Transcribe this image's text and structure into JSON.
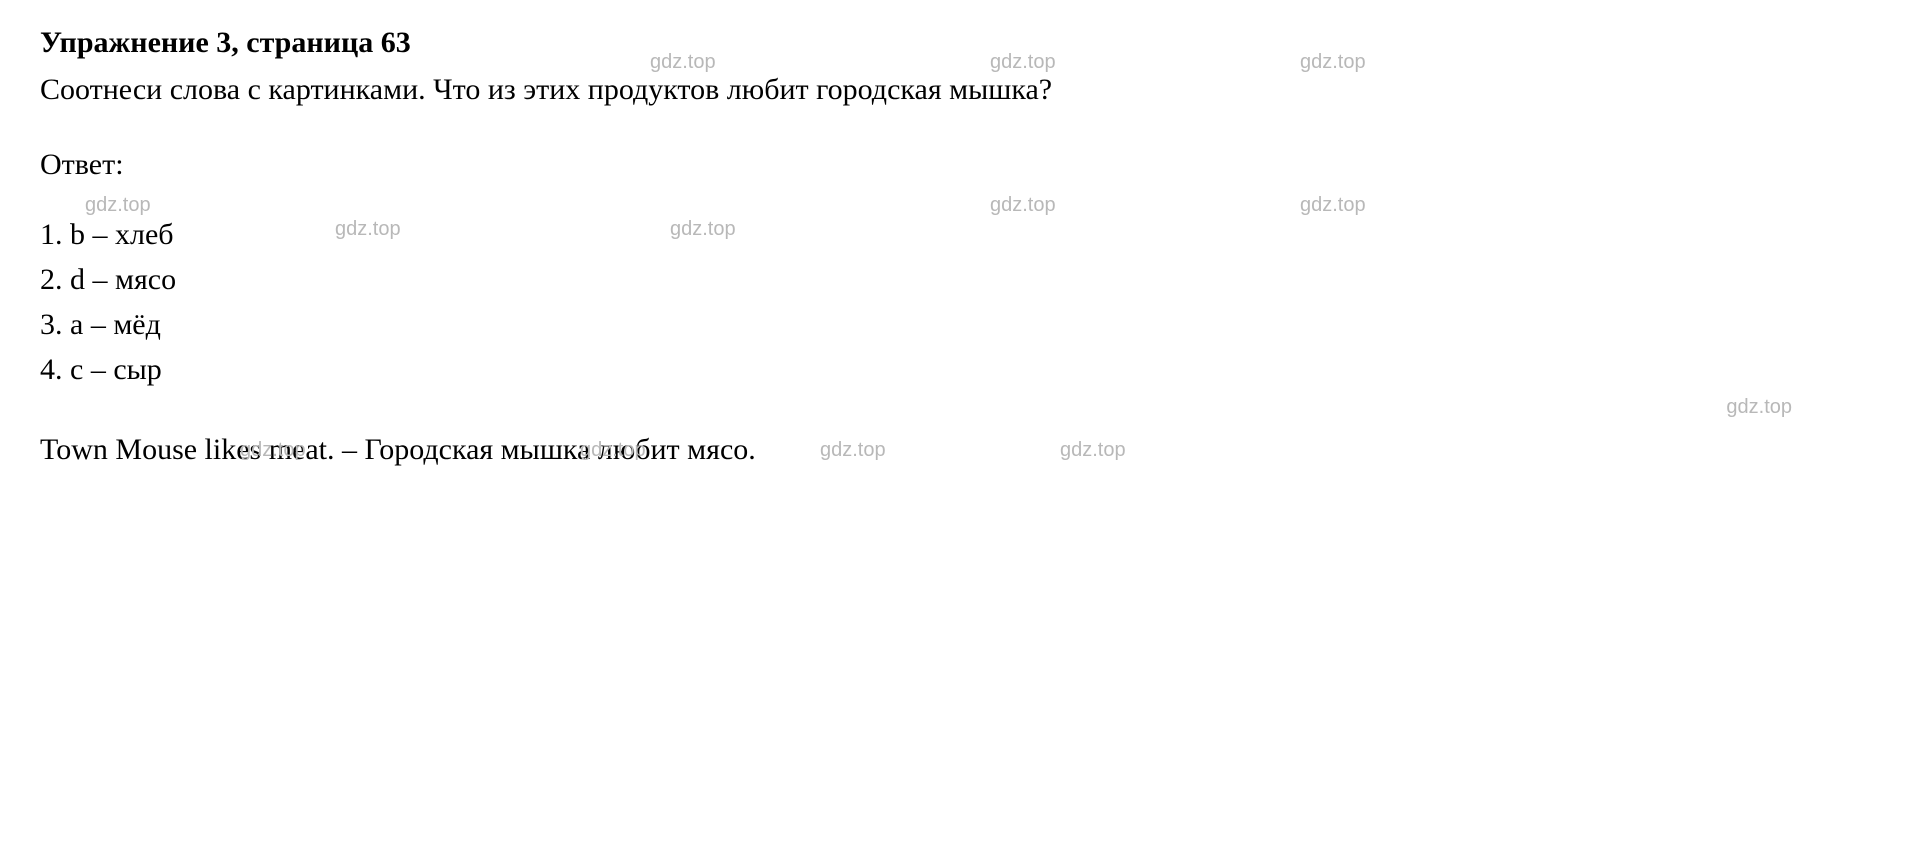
{
  "heading": "Упражнение 3, страница 63",
  "instruction": "Соотнеси слова с картинками. Что из этих продуктов любит городская мышка?",
  "answer_label": "Ответ:",
  "answers": [
    "1. b – хлеб",
    "2. d – мясо",
    "3. a – мёд",
    "4. c – сыр"
  ],
  "conclusion": "Town Mouse likes meat. – Городская мышка любит мясо.",
  "watermark_text": "gdz.top",
  "colors": {
    "text": "#000000",
    "background": "#ffffff",
    "watermark": "#b8b8b8"
  },
  "typography": {
    "font_family": "Times New Roman",
    "body_fontsize": 30,
    "watermark_fontsize": 20,
    "heading_weight": "bold"
  }
}
